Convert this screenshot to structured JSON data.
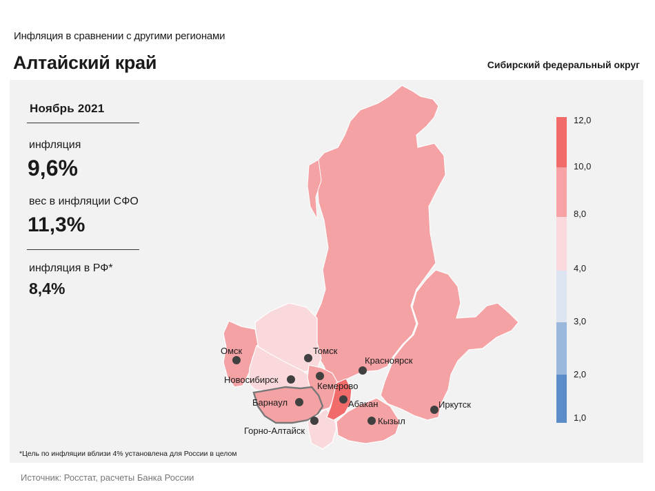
{
  "header": {
    "subtitle": "Инфляция  в сравнении  с другими  регионами",
    "title": "Алтайский край",
    "district": "Сибирский федеральный округ"
  },
  "stats": {
    "period": "Ноябрь 2021",
    "inflation_label": "инфляция",
    "inflation_value": "9,6%",
    "weight_label": "вес в инфляции  СФО",
    "weight_value": "11,3%",
    "rf_label": "инфляция  в РФ*",
    "rf_value": "8,4%"
  },
  "legend": {
    "ticks": [
      "12,0",
      "10,0",
      "8,0",
      "4,0",
      "3,0",
      "2,0",
      "1,0"
    ],
    "colors": [
      "#f26b6b",
      "#f7a3a5",
      "#fadadd",
      "#dde5f3",
      "#9ab7dc",
      "#5b8dc9"
    ]
  },
  "map": {
    "region_colors": {
      "high": "#f26b6b",
      "mid_high": "#f5a2a5",
      "low": "#f9d9dc",
      "highlight_stroke": "#555555"
    },
    "cities": [
      "Омск",
      "Томск",
      "Новосибирск",
      "Кемерово",
      "Красноярск",
      "Барнаул",
      "Абакан",
      "Горно-Алтайск",
      "Кызыл",
      "Иркутск"
    ]
  },
  "footnote": "*Цель по инфляции вблизи 4% установлена для России в целом",
  "source": "Источник: Росстат, расчеты Банка России"
}
